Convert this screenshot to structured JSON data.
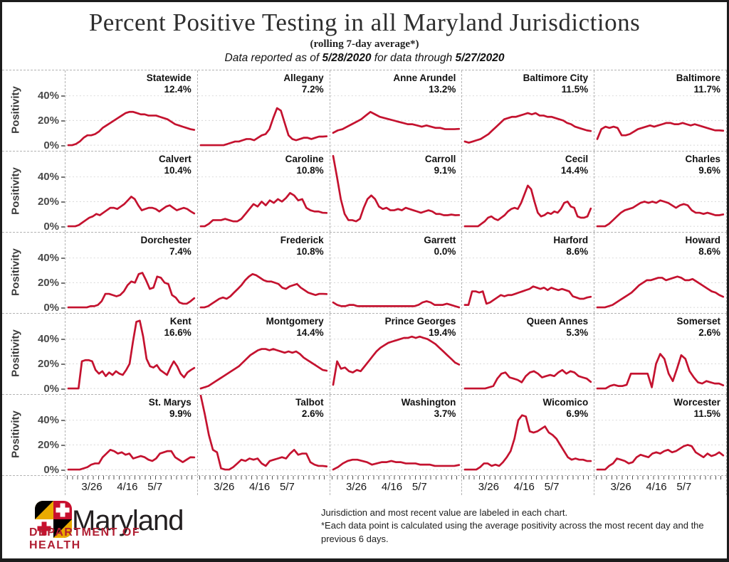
{
  "page": {
    "title": "Percent Positive Testing in all Maryland Jurisdictions",
    "subtitle": "(rolling 7-day average*)",
    "reported": {
      "prefix": "Data reported as of ",
      "report_date": "5/28/2020",
      "middle": " for data through ",
      "data_date": "5/27/2020"
    }
  },
  "chart_data": {
    "type": "line",
    "title": "Percent Positive Testing in all Maryland Jurisdictions (rolling 7-day average)",
    "ylabel": "Positivity",
    "yticks_percent": [
      0,
      20,
      40
    ],
    "ylim": [
      0,
      57
    ],
    "xticks": [
      "3/26",
      "4/16",
      "5/7"
    ],
    "xtick_positions": [
      0.2,
      0.47,
      0.68
    ],
    "x_range": "approx 3/15/2020 - 5/27/2020, daily rolling 7-day average",
    "line_color": "#c4122f",
    "grid": {
      "rows": 5,
      "cols": 5,
      "gridlines": "dotted horizontal at 0/20/40"
    },
    "legend": "none - jurisdiction and most recent value labeled in each panel",
    "series": [
      {
        "name": "Statewide",
        "latest": "12.4%",
        "values": [
          0,
          0,
          1,
          3,
          6,
          8,
          8,
          9,
          11,
          14,
          16,
          18,
          20,
          22,
          24,
          26,
          27,
          27,
          26,
          25,
          25,
          24,
          24,
          24,
          23,
          22,
          21,
          19,
          17,
          16,
          15,
          14,
          13,
          12.4
        ]
      },
      {
        "name": "Allegany",
        "latest": "7.2%",
        "values": [
          0,
          0,
          0,
          0,
          0,
          0,
          0,
          1,
          2,
          3,
          3,
          4,
          5,
          5,
          4,
          6,
          8,
          9,
          13,
          22,
          30,
          28,
          18,
          8,
          5,
          4,
          5,
          6,
          6,
          5,
          6,
          7,
          7,
          7.2
        ]
      },
      {
        "name": "Anne Arundel",
        "latest": "13.2%",
        "values": [
          10,
          12,
          13,
          15,
          17,
          19,
          21,
          24,
          27,
          25,
          23,
          22,
          21,
          20,
          19,
          18,
          17,
          17,
          16,
          15,
          16,
          15,
          14,
          14,
          13,
          13,
          13,
          13.2
        ]
      },
      {
        "name": "Baltimore City",
        "latest": "11.5%",
        "values": [
          3,
          2,
          3,
          4,
          5,
          7,
          9,
          12,
          15,
          18,
          21,
          22,
          23,
          23,
          24,
          25,
          26,
          25,
          26,
          24,
          24,
          23,
          23,
          22,
          21,
          20,
          18,
          17,
          15,
          14,
          13,
          12,
          11.5
        ]
      },
      {
        "name": "Baltimore",
        "latest": "11.7%",
        "values": [
          5,
          13,
          15,
          14,
          15,
          14,
          8,
          8,
          9,
          11,
          13,
          14,
          15,
          16,
          15,
          16,
          17,
          18,
          18,
          17,
          17,
          18,
          17,
          16,
          17,
          16,
          15,
          14,
          13,
          12,
          12,
          11.7
        ]
      },
      {
        "name": "Calvert",
        "latest": "10.4%",
        "values": [
          0,
          0,
          0,
          1,
          3,
          5,
          7,
          8,
          10,
          9,
          11,
          13,
          15,
          15,
          14,
          16,
          18,
          21,
          24,
          22,
          17,
          13,
          14,
          15,
          15,
          14,
          12,
          14,
          16,
          17,
          15,
          13,
          14,
          15,
          14,
          12,
          10.4
        ]
      },
      {
        "name": "Caroline",
        "latest": "10.8%",
        "values": [
          0,
          0,
          2,
          5,
          5,
          5,
          6,
          5,
          4,
          4,
          6,
          10,
          14,
          18,
          16,
          20,
          17,
          21,
          19,
          22,
          20,
          23,
          27,
          25,
          21,
          22,
          15,
          13,
          12,
          12,
          11,
          10.8
        ]
      },
      {
        "name": "Carroll",
        "latest": "9.1%",
        "values": [
          57,
          40,
          22,
          10,
          5,
          5,
          4,
          6,
          15,
          22,
          25,
          22,
          16,
          14,
          15,
          13,
          13,
          14,
          13,
          15,
          14,
          13,
          12,
          11,
          12,
          13,
          12,
          10,
          10,
          9,
          9,
          9.5,
          9,
          9.1
        ]
      },
      {
        "name": "Cecil",
        "latest": "14.4%",
        "values": [
          0,
          0,
          0,
          0,
          0,
          2,
          4,
          7,
          8,
          6,
          5,
          7,
          9,
          12,
          14,
          15,
          14,
          19,
          26,
          33,
          30,
          20,
          11,
          8,
          9,
          11,
          10,
          12,
          11,
          14,
          19,
          20,
          16,
          15,
          8,
          7,
          7,
          8,
          14.4
        ]
      },
      {
        "name": "Charles",
        "latest": "9.6%",
        "values": [
          0,
          0,
          0,
          2,
          5,
          8,
          11,
          13,
          14,
          15,
          17,
          19,
          20,
          19,
          20,
          19,
          21,
          20,
          19,
          17,
          15,
          17,
          18,
          17,
          13,
          11,
          11,
          10,
          11,
          10,
          9,
          9,
          9.6
        ]
      },
      {
        "name": "Dorchester",
        "latest": "7.4%",
        "values": [
          0,
          0,
          0,
          0,
          0,
          0,
          1,
          1,
          2,
          5,
          11,
          11,
          10,
          9,
          10,
          13,
          18,
          21,
          20,
          27,
          28,
          22,
          15,
          16,
          25,
          24,
          20,
          19,
          10,
          8,
          4,
          3,
          3,
          5,
          7.4
        ]
      },
      {
        "name": "Frederick",
        "latest": "10.8%",
        "values": [
          0,
          0,
          1,
          3,
          5,
          7,
          8,
          7,
          9,
          12,
          15,
          18,
          22,
          25,
          27,
          26,
          24,
          22,
          21,
          21,
          20,
          19,
          16,
          15,
          17,
          18,
          19,
          16,
          14,
          12,
          11,
          10,
          11,
          11,
          10.8
        ]
      },
      {
        "name": "Garrett",
        "latest": "0.0%",
        "values": [
          4,
          2,
          1,
          1,
          2,
          2,
          1,
          1,
          1,
          1,
          1,
          1,
          1,
          1,
          1,
          1,
          1,
          1,
          1,
          1,
          1,
          2,
          4,
          5,
          4,
          2,
          2,
          2,
          3,
          2,
          1,
          0
        ]
      },
      {
        "name": "Harford",
        "latest": "8.6%",
        "values": [
          2,
          2,
          13,
          13,
          12,
          13,
          3,
          4,
          6,
          8,
          10,
          9,
          10,
          10,
          11,
          12,
          13,
          14,
          15,
          17,
          16,
          15,
          16,
          14,
          16,
          15,
          14,
          15,
          14,
          13,
          9,
          8,
          7,
          7,
          8,
          8.6
        ]
      },
      {
        "name": "Howard",
        "latest": "8.6%",
        "values": [
          0,
          0,
          0,
          1,
          2,
          4,
          6,
          8,
          10,
          12,
          15,
          18,
          20,
          22,
          22,
          23,
          24,
          24,
          22,
          23,
          24,
          25,
          24,
          22,
          22,
          23,
          21,
          19,
          17,
          15,
          13,
          12,
          10,
          8.6
        ]
      },
      {
        "name": "Kent",
        "latest": "16.6%",
        "values": [
          0,
          0,
          0,
          0,
          22,
          23,
          23,
          22,
          15,
          12,
          14,
          10,
          13,
          11,
          14,
          12,
          11,
          15,
          20,
          38,
          54,
          55,
          42,
          24,
          18,
          17,
          19,
          15,
          13,
          11,
          17,
          22,
          18,
          12,
          9,
          13,
          15,
          16.6
        ]
      },
      {
        "name": "Montgomery",
        "latest": "14.4%",
        "values": [
          0,
          1,
          2,
          4,
          6,
          8,
          10,
          12,
          14,
          16,
          18,
          21,
          24,
          27,
          29,
          31,
          32,
          32,
          31,
          32,
          31,
          30,
          29,
          30,
          29,
          30,
          28,
          25,
          23,
          21,
          19,
          17,
          15,
          14.4
        ]
      },
      {
        "name": "Prince Georges",
        "latest": "19.4%",
        "values": [
          3,
          22,
          16,
          17,
          14,
          13,
          15,
          14,
          18,
          22,
          26,
          30,
          33,
          35,
          37,
          38,
          39,
          40,
          41,
          41,
          42,
          41,
          42,
          41,
          40,
          38,
          36,
          33,
          30,
          27,
          24,
          21,
          19.4
        ]
      },
      {
        "name": "Queen Annes",
        "latest": "5.3%",
        "values": [
          0,
          0,
          0,
          0,
          0,
          0,
          1,
          2,
          8,
          12,
          13,
          9,
          8,
          7,
          5,
          10,
          13,
          14,
          12,
          9,
          10,
          11,
          10,
          13,
          15,
          12,
          14,
          13,
          10,
          9,
          8,
          5.3
        ]
      },
      {
        "name": "Somerset",
        "latest": "2.6%",
        "values": [
          0,
          0,
          0,
          2,
          3,
          2,
          2,
          3,
          12,
          12,
          12,
          12,
          12,
          1,
          20,
          28,
          24,
          12,
          6,
          16,
          27,
          24,
          14,
          9,
          5,
          4,
          6,
          5,
          4,
          4,
          2.6
        ]
      },
      {
        "name": "St. Marys",
        "latest": "9.9%",
        "values": [
          0,
          0,
          0,
          0,
          1,
          2,
          4,
          5,
          5,
          10,
          13,
          16,
          15,
          13,
          14,
          12,
          13,
          9,
          10,
          11,
          10,
          8,
          7,
          9,
          13,
          14,
          15,
          15,
          10,
          8,
          6,
          8,
          10,
          9.9
        ]
      },
      {
        "name": "Talbot",
        "latest": "2.6%",
        "values": [
          60,
          45,
          28,
          16,
          14,
          1,
          0,
          0,
          2,
          5,
          8,
          7,
          9,
          8,
          9,
          5,
          3,
          7,
          8,
          9,
          10,
          9,
          13,
          16,
          12,
          13,
          13,
          6,
          4,
          3,
          3,
          2.6
        ]
      },
      {
        "name": "Washington",
        "latest": "3.7%",
        "values": [
          0,
          2,
          5,
          7,
          8,
          8,
          7,
          6,
          4,
          5,
          6,
          6,
          7,
          6,
          6,
          5,
          5,
          5,
          4,
          4,
          4,
          3,
          3,
          3,
          3,
          3,
          3.7
        ]
      },
      {
        "name": "Wicomico",
        "latest": "6.9%",
        "values": [
          0,
          0,
          0,
          0,
          2,
          5,
          5,
          3,
          4,
          3,
          6,
          10,
          15,
          25,
          40,
          44,
          43,
          31,
          30,
          31,
          33,
          35,
          30,
          28,
          25,
          20,
          15,
          10,
          8,
          9,
          8,
          8,
          7,
          6.9
        ]
      },
      {
        "name": "Worcester",
        "latest": "11.5%",
        "values": [
          0,
          0,
          0,
          3,
          5,
          9,
          8,
          7,
          5,
          6,
          10,
          12,
          11,
          10,
          13,
          14,
          13,
          15,
          16,
          14,
          15,
          17,
          19,
          20,
          19,
          14,
          12,
          10,
          13,
          11,
          12,
          14,
          11.5
        ]
      }
    ]
  },
  "footer": {
    "notes": [
      "Jurisdiction and most recent value are labeled in each chart.",
      "*Each data point is calculated using the average positivity across the most recent day and the previous 6 days."
    ],
    "logo": {
      "brand": "Maryland",
      "department": "DEPARTMENT OF HEALTH",
      "colors": {
        "gold": "#eaab00",
        "red": "#c8102e",
        "black": "#000000",
        "dept_text": "#b01e32"
      }
    }
  }
}
